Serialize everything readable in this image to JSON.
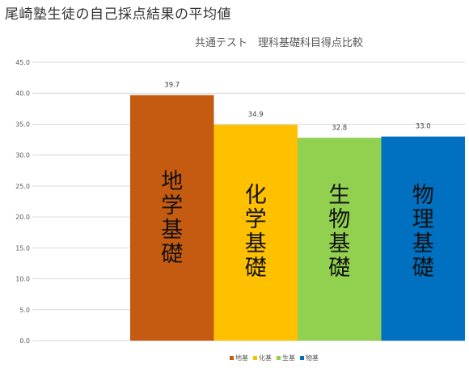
{
  "page": {
    "title": "尾崎塾生徒の自己採点結果の平均値"
  },
  "chart_data": {
    "type": "bar",
    "title": "共通テスト　理科基礎科目得点比較",
    "categories": [
      "地学基礎",
      "化学基礎",
      "生物基礎",
      "物理基礎"
    ],
    "values": [
      39.7,
      34.9,
      32.8,
      33.0
    ],
    "value_labels": [
      "39.7",
      "34.9",
      "32.8",
      "33.0"
    ],
    "bar_texts": [
      "地学基礎",
      "化学基礎",
      "生物基礎",
      "物理基礎"
    ],
    "colors": [
      "#c55a11",
      "#ffc000",
      "#92d050",
      "#0070c0"
    ],
    "ylim": [
      0,
      45
    ],
    "yticks": [
      "0.0",
      "5.0",
      "10.0",
      "15.0",
      "20.0",
      "25.0",
      "30.0",
      "35.0",
      "40.0",
      "45.0"
    ],
    "grid": true,
    "legend_position": "bottom",
    "legend": [
      "地基",
      "化基",
      "生基",
      "物基"
    ]
  }
}
